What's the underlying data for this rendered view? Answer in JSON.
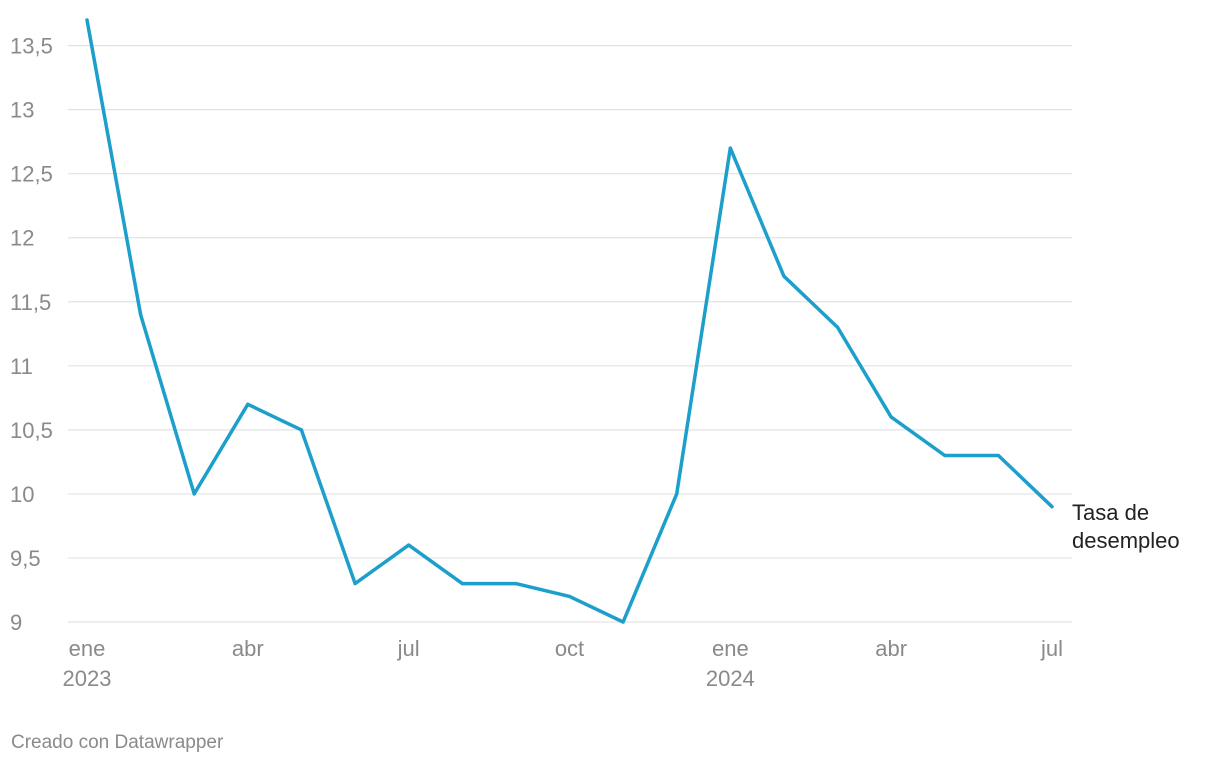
{
  "chart_data": {
    "type": "line",
    "x": [
      "2023-01",
      "2023-02",
      "2023-03",
      "2023-04",
      "2023-05",
      "2023-06",
      "2023-07",
      "2023-08",
      "2023-09",
      "2023-10",
      "2023-11",
      "2023-12",
      "2024-01",
      "2024-02",
      "2024-03",
      "2024-04",
      "2024-05",
      "2024-06",
      "2024-07"
    ],
    "series": [
      {
        "name": "Tasa de desempleo",
        "values": [
          13.7,
          11.4,
          10.0,
          10.7,
          10.5,
          9.3,
          9.6,
          9.3,
          9.3,
          9.2,
          9.0,
          10.0,
          12.7,
          11.7,
          11.3,
          10.6,
          10.3,
          10.3,
          9.9
        ]
      }
    ],
    "ylim": [
      9,
      13.7
    ],
    "y_ticks": [
      {
        "value": 9,
        "label": "9"
      },
      {
        "value": 9.5,
        "label": "9,5"
      },
      {
        "value": 10,
        "label": "10"
      },
      {
        "value": 10.5,
        "label": "10,5"
      },
      {
        "value": 11,
        "label": "11"
      },
      {
        "value": 11.5,
        "label": "11,5"
      },
      {
        "value": 12,
        "label": "12"
      },
      {
        "value": 12.5,
        "label": "12,5"
      },
      {
        "value": 13,
        "label": "13"
      },
      {
        "value": 13.5,
        "label": "13,5"
      }
    ],
    "x_ticks": [
      {
        "date": "2023-01",
        "line1": "ene",
        "line2": "2023"
      },
      {
        "date": "2023-04",
        "line1": "abr",
        "line2": ""
      },
      {
        "date": "2023-07",
        "line1": "jul",
        "line2": ""
      },
      {
        "date": "2023-10",
        "line1": "oct",
        "line2": ""
      },
      {
        "date": "2024-01",
        "line1": "ene",
        "line2": "2024"
      },
      {
        "date": "2024-04",
        "line1": "abr",
        "line2": ""
      },
      {
        "date": "2024-07",
        "line1": "jul",
        "line2": ""
      }
    ],
    "series_label_lines": [
      "Tasa de",
      "desempleo"
    ],
    "grid": true,
    "line_color": "#1d9fcb",
    "grid_color": "#e3e3e3"
  },
  "footer": {
    "credit": "Creado con Datawrapper"
  }
}
